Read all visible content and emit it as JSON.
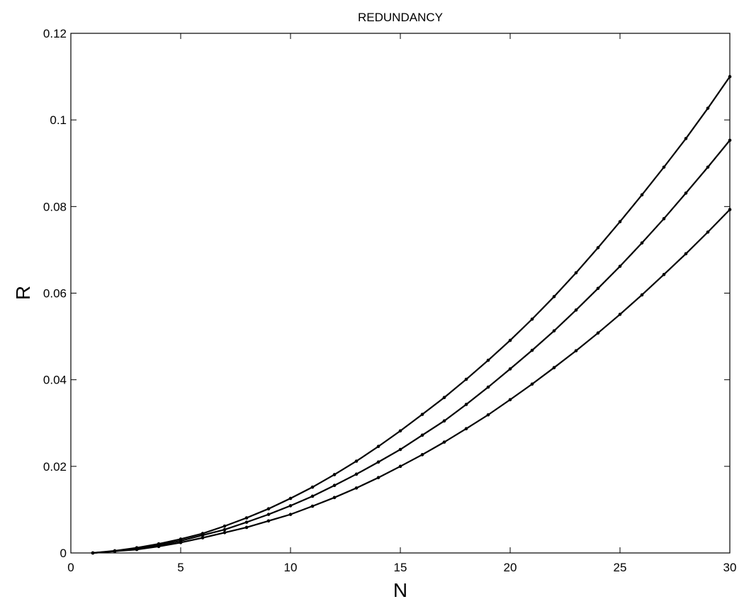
{
  "chart_data": {
    "type": "line",
    "title": "REDUNDANCY",
    "xlabel": "N",
    "ylabel": "R",
    "xlim": [
      0,
      30
    ],
    "ylim": [
      0,
      0.12
    ],
    "xticks": [
      0,
      5,
      10,
      15,
      20,
      25,
      30
    ],
    "xtick_labels": [
      "0",
      "5",
      "10",
      "15",
      "20",
      "25",
      "30"
    ],
    "yticks": [
      0,
      0.02,
      0.04,
      0.06,
      0.08,
      0.1,
      0.12
    ],
    "ytick_labels": [
      "0",
      "0.02",
      "0.04",
      "0.06",
      "0.08",
      "0.1",
      "0.12"
    ],
    "grid": false,
    "legend": "none",
    "marker": "dot",
    "line_color": "#000000",
    "x": [
      1,
      2,
      3,
      4,
      5,
      6,
      7,
      8,
      9,
      10,
      11,
      12,
      13,
      14,
      15,
      16,
      17,
      18,
      19,
      20,
      21,
      22,
      23,
      24,
      25,
      26,
      27,
      28,
      29,
      30
    ],
    "series": [
      {
        "values": [
          0,
          0.0005,
          0.0012,
          0.0021,
          0.0032,
          0.0045,
          0.0062,
          0.0081,
          0.0102,
          0.0126,
          0.0152,
          0.0181,
          0.0212,
          0.0246,
          0.0282,
          0.032,
          0.0359,
          0.0401,
          0.0445,
          0.0491,
          0.054,
          0.0592,
          0.0647,
          0.0705,
          0.0765,
          0.0827,
          0.0891,
          0.0957,
          0.1027,
          0.11
        ]
      },
      {
        "values": [
          0,
          0.0004,
          0.001,
          0.0018,
          0.0028,
          0.0041,
          0.0054,
          0.0071,
          0.0089,
          0.0109,
          0.0131,
          0.0156,
          0.0182,
          0.021,
          0.0239,
          0.0272,
          0.0305,
          0.0343,
          0.0383,
          0.0425,
          0.0468,
          0.0513,
          0.0561,
          0.0611,
          0.0662,
          0.0716,
          0.0772,
          0.0831,
          0.0891,
          0.0953
        ]
      },
      {
        "values": [
          0,
          0.0004,
          0.0008,
          0.0015,
          0.0024,
          0.0035,
          0.0047,
          0.0059,
          0.0074,
          0.0089,
          0.0108,
          0.0128,
          0.015,
          0.0174,
          0.02,
          0.0227,
          0.0256,
          0.0287,
          0.0319,
          0.0354,
          0.039,
          0.0428,
          0.0467,
          0.0508,
          0.0551,
          0.0596,
          0.0643,
          0.0691,
          0.0741,
          0.0793
        ]
      }
    ]
  }
}
